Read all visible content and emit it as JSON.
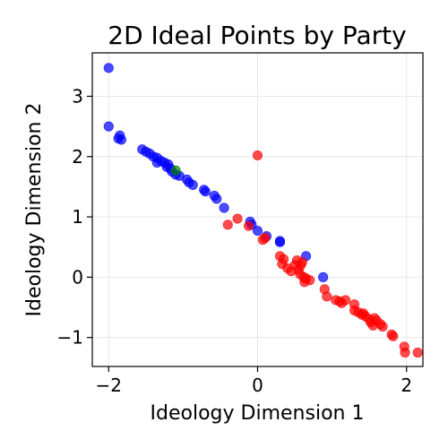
{
  "chart_data": {
    "type": "scatter",
    "title": "2D Ideal Points by Party",
    "xlabel": "Ideology Dimension 1",
    "ylabel": "Ideology Dimension 2",
    "xlim": [
      -2.22,
      2.22
    ],
    "ylim": [
      -1.48,
      3.72
    ],
    "x_ticks": [
      {
        "value": -2,
        "label": "−2"
      },
      {
        "value": 0,
        "label": "0"
      },
      {
        "value": 2,
        "label": "2"
      }
    ],
    "y_ticks": [
      {
        "value": -1,
        "label": "−1"
      },
      {
        "value": 0,
        "label": "0"
      },
      {
        "value": 1,
        "label": "1"
      },
      {
        "value": 2,
        "label": "2"
      },
      {
        "value": 3,
        "label": "3"
      }
    ],
    "grid": true,
    "marker_opacity": 0.7,
    "series": [
      {
        "color": "#0000ff",
        "points": [
          [
            -2.0,
            3.47
          ],
          [
            -2.0,
            2.5
          ],
          [
            -1.85,
            2.35
          ],
          [
            -1.87,
            2.3
          ],
          [
            -1.83,
            2.28
          ],
          [
            -1.55,
            2.12
          ],
          [
            -1.5,
            2.08
          ],
          [
            -1.45,
            2.05
          ],
          [
            -1.4,
            2.0
          ],
          [
            -1.35,
            1.98
          ],
          [
            -1.3,
            1.93
          ],
          [
            -1.25,
            1.9
          ],
          [
            -1.2,
            1.87
          ],
          [
            -1.22,
            1.83
          ],
          [
            -1.17,
            1.8
          ],
          [
            -1.15,
            1.75
          ],
          [
            -1.1,
            1.7
          ],
          [
            -1.35,
            1.9
          ],
          [
            -1.05,
            1.68
          ],
          [
            -0.95,
            1.62
          ],
          [
            -0.92,
            1.57
          ],
          [
            -0.87,
            1.53
          ],
          [
            -0.72,
            1.45
          ],
          [
            -0.7,
            1.42
          ],
          [
            -0.58,
            1.35
          ],
          [
            -0.55,
            1.3
          ],
          [
            -0.45,
            1.15
          ],
          [
            -0.1,
            0.92
          ],
          [
            -0.08,
            0.87
          ],
          [
            0.0,
            0.77
          ],
          [
            0.12,
            0.68
          ],
          [
            0.3,
            0.6
          ],
          [
            0.3,
            0.58
          ],
          [
            0.65,
            0.35
          ],
          [
            0.88,
            0.0
          ]
        ]
      },
      {
        "color": "#ff0000",
        "points": [
          [
            0.0,
            2.02
          ],
          [
            -0.4,
            0.87
          ],
          [
            -0.27,
            0.97
          ],
          [
            -0.12,
            0.85
          ],
          [
            0.07,
            0.62
          ],
          [
            0.1,
            0.65
          ],
          [
            0.3,
            0.35
          ],
          [
            0.35,
            0.3
          ],
          [
            0.33,
            0.22
          ],
          [
            0.4,
            0.15
          ],
          [
            0.45,
            0.1
          ],
          [
            0.5,
            0.2
          ],
          [
            0.53,
            0.28
          ],
          [
            0.55,
            0.12
          ],
          [
            0.58,
            0.2
          ],
          [
            0.6,
            0.25
          ],
          [
            0.57,
            0.05
          ],
          [
            0.62,
            0.0
          ],
          [
            0.63,
            -0.08
          ],
          [
            0.65,
            -0.02
          ],
          [
            0.7,
            -0.05
          ],
          [
            0.9,
            -0.2
          ],
          [
            0.93,
            -0.32
          ],
          [
            1.05,
            -0.38
          ],
          [
            1.1,
            -0.4
          ],
          [
            1.13,
            -0.43
          ],
          [
            1.18,
            -0.38
          ],
          [
            1.3,
            -0.45
          ],
          [
            1.3,
            -0.55
          ],
          [
            1.35,
            -0.58
          ],
          [
            1.4,
            -0.62
          ],
          [
            1.42,
            -0.6
          ],
          [
            1.45,
            -0.65
          ],
          [
            1.5,
            -0.7
          ],
          [
            1.52,
            -0.75
          ],
          [
            1.55,
            -0.8
          ],
          [
            1.57,
            -0.68
          ],
          [
            1.6,
            -0.72
          ],
          [
            1.65,
            -0.78
          ],
          [
            1.68,
            -0.82
          ],
          [
            1.8,
            -0.95
          ],
          [
            1.82,
            -0.98
          ],
          [
            1.97,
            -1.15
          ],
          [
            1.98,
            -1.25
          ],
          [
            2.15,
            -1.25
          ]
        ]
      },
      {
        "color": "#008000",
        "points": [
          [
            -1.1,
            1.77
          ]
        ]
      }
    ]
  }
}
